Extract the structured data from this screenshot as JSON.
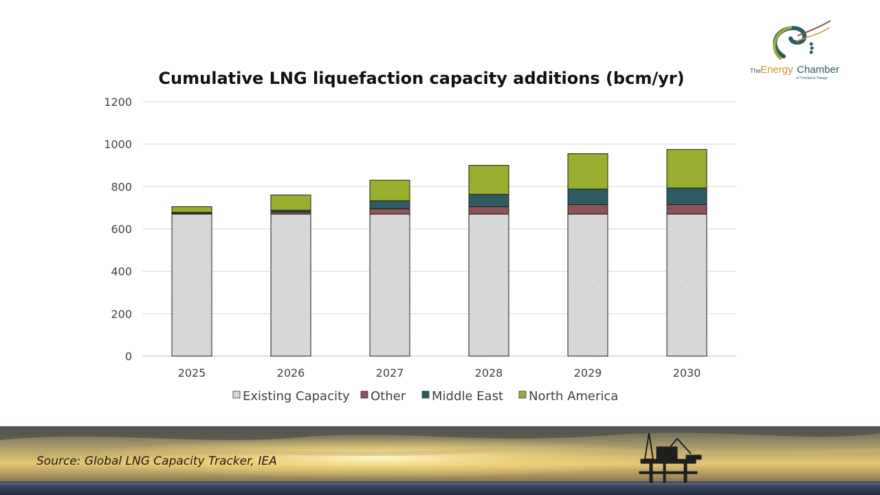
{
  "logo": {
    "brand_small": "The",
    "brand_energy": "Energy",
    "brand_chamber": "Chamber",
    "brand_sub": "of Trinidad & Tobago"
  },
  "footer": {
    "source": "Source: Global LNG Capacity Tracker, IEA"
  },
  "colors": {
    "existing": "#e6e6e6",
    "other": "#8c5358",
    "middle_east": "#2e5a63",
    "north_america": "#99ad2f",
    "grid": "#d9d9d9"
  },
  "chart_data": {
    "type": "bar",
    "stacked": true,
    "title": "Cumulative LNG liquefaction capacity additions (bcm/yr)",
    "xlabel": "",
    "ylabel": "",
    "categories": [
      "2025",
      "2026",
      "2027",
      "2028",
      "2029",
      "2030"
    ],
    "ylim": [
      0,
      1200
    ],
    "yticks": [
      "0",
      "200",
      "400",
      "600",
      "800",
      "1000",
      "1200"
    ],
    "grid": true,
    "legend_position": "bottom",
    "series": [
      {
        "name": "Existing Capacity",
        "key": "existing",
        "values": [
          670,
          670,
          670,
          670,
          670,
          670
        ]
      },
      {
        "name": "Other",
        "key": "other",
        "values": [
          5,
          10,
          25,
          35,
          45,
          45
        ]
      },
      {
        "name": "Middle East",
        "key": "middle_east",
        "values": [
          3,
          8,
          38,
          58,
          73,
          78
        ]
      },
      {
        "name": "North America",
        "key": "north_america",
        "values": [
          27,
          72,
          97,
          137,
          167,
          182
        ]
      }
    ]
  }
}
